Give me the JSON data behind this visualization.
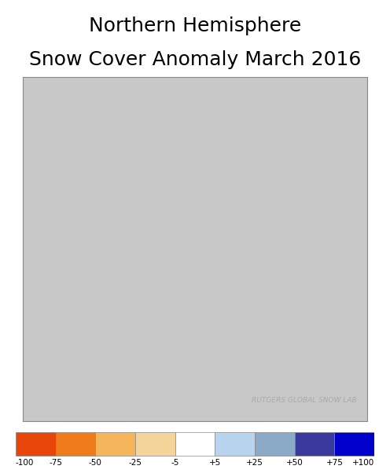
{
  "title_line1": "Northern Hemisphere",
  "title_line2": "Snow Cover Anomaly March 2016",
  "title_fontsize": 18,
  "colorbar_labels": [
    "-100",
    "-75",
    "-50",
    "-25",
    "-5",
    "+5",
    "+25",
    "+50",
    "+75",
    "+100"
  ],
  "colorbar_boundaries": [
    -100,
    -75,
    -50,
    -25,
    -5,
    5,
    25,
    50,
    75,
    100
  ],
  "colorbar_colors": [
    "#E8450A",
    "#F07B1A",
    "#F5B55A",
    "#F5D49A",
    "#FFFFFF",
    "#B8D4EE",
    "#8AAAC8",
    "#3A3A9E",
    "#0000CC"
  ],
  "watermark": "RUTGERS GLOBAL SNOW LAB",
  "watermark_color": "#AAAAAA",
  "background_color": "#C8C8C8",
  "map_background": "#C8C8C8",
  "border_color": "#CCCCCC",
  "figure_bg": "#FFFFFF"
}
